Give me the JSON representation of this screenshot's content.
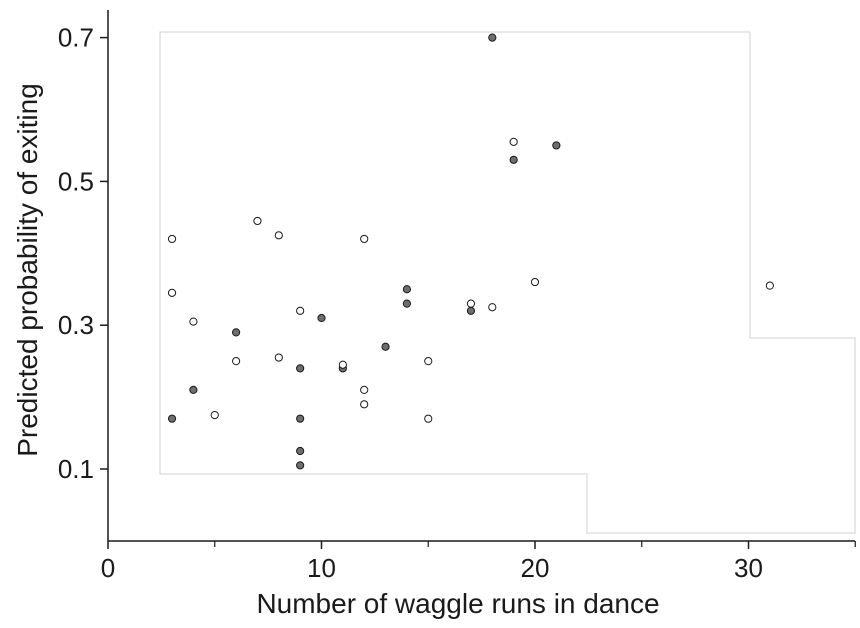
{
  "chart_data": {
    "type": "scatter",
    "title": "",
    "xlabel": "Number of waggle runs in dance",
    "ylabel": "Predicted probability of exiting",
    "xlim": [
      0,
      35
    ],
    "ylim": [
      0,
      0.75
    ],
    "x_ticks": [
      0,
      10,
      20,
      30
    ],
    "x_minor_ticks": [
      5,
      15,
      25,
      35
    ],
    "y_ticks": [
      0.1,
      0.3,
      0.5,
      0.7
    ],
    "grid": false,
    "colors": {
      "filled": "#6e6e6e",
      "open": "#ffffff",
      "stroke": "#1a1a1a",
      "axis": "#1a1a1a"
    },
    "series": [
      {
        "marker": "filled",
        "points": [
          {
            "x": 3,
            "y": 0.17
          },
          {
            "x": 4,
            "y": 0.21
          },
          {
            "x": 6,
            "y": 0.29
          },
          {
            "x": 9,
            "y": 0.24
          },
          {
            "x": 9,
            "y": 0.17
          },
          {
            "x": 9,
            "y": 0.125
          },
          {
            "x": 9,
            "y": 0.105
          },
          {
            "x": 10,
            "y": 0.31
          },
          {
            "x": 11,
            "y": 0.24
          },
          {
            "x": 13,
            "y": 0.27
          },
          {
            "x": 14,
            "y": 0.35
          },
          {
            "x": 14,
            "y": 0.33
          },
          {
            "x": 17,
            "y": 0.32
          },
          {
            "x": 18,
            "y": 0.7
          },
          {
            "x": 19,
            "y": 0.53
          },
          {
            "x": 21,
            "y": 0.55
          }
        ]
      },
      {
        "marker": "open",
        "points": [
          {
            "x": 3,
            "y": 0.42
          },
          {
            "x": 3,
            "y": 0.345
          },
          {
            "x": 4,
            "y": 0.305
          },
          {
            "x": 5,
            "y": 0.175
          },
          {
            "x": 6,
            "y": 0.25
          },
          {
            "x": 7,
            "y": 0.445
          },
          {
            "x": 8,
            "y": 0.425
          },
          {
            "x": 8,
            "y": 0.255
          },
          {
            "x": 9,
            "y": 0.32
          },
          {
            "x": 11,
            "y": 0.245
          },
          {
            "x": 12,
            "y": 0.42
          },
          {
            "x": 12,
            "y": 0.21
          },
          {
            "x": 12,
            "y": 0.19
          },
          {
            "x": 15,
            "y": 0.25
          },
          {
            "x": 15,
            "y": 0.17
          },
          {
            "x": 17,
            "y": 0.33
          },
          {
            "x": 18,
            "y": 0.325
          },
          {
            "x": 19,
            "y": 0.555
          },
          {
            "x": 20,
            "y": 0.36
          },
          {
            "x": 31,
            "y": 0.355
          }
        ]
      }
    ]
  }
}
